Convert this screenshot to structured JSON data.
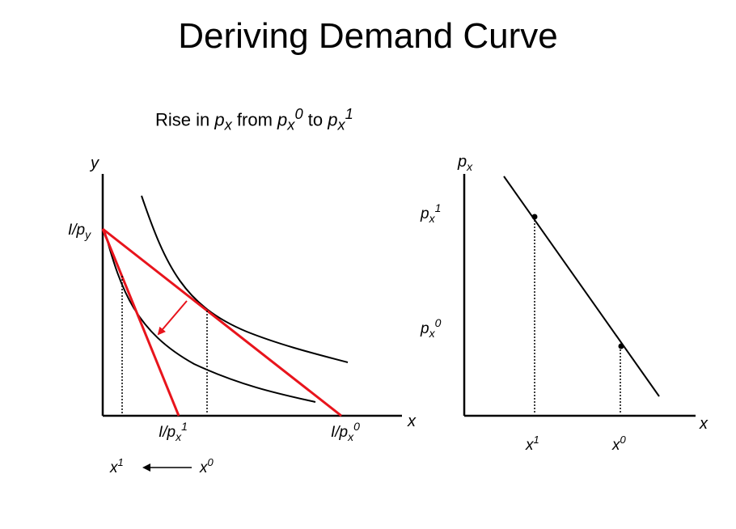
{
  "title": "Deriving Demand Curve",
  "subtitle": {
    "prefix": "Rise in ",
    "p": "p",
    "x": "x",
    "from": " from ",
    "sup0": "0",
    "to": " to ",
    "sup1": "1"
  },
  "left_graph": {
    "y_axis_label": "y",
    "x_axis_label": "x",
    "intercept_y_label": "I/p",
    "intercept_y_sub": "y",
    "intercept_x1_label": "I/p",
    "intercept_x1_sub": "x",
    "intercept_x1_sup": "1",
    "intercept_x0_label": "I/p",
    "intercept_x0_sub": "x",
    "intercept_x0_sup": "0",
    "shift_from": "x",
    "shift_from_sup": "0",
    "shift_to": "x",
    "shift_to_sup": "1"
  },
  "right_graph": {
    "y_axis_label": "p",
    "y_axis_sub": "x",
    "p1_label": "p",
    "p1_sub": "x",
    "p1_sup": "1",
    "p0_label": "p",
    "p0_sub": "x",
    "p0_sup": "0",
    "x_axis_label": "x",
    "x1_label": "x",
    "x1_sup": "1",
    "x0_label": "x",
    "x0_sup": "0"
  },
  "colors": {
    "budget_line": "#e8141c",
    "curve": "#000000"
  }
}
